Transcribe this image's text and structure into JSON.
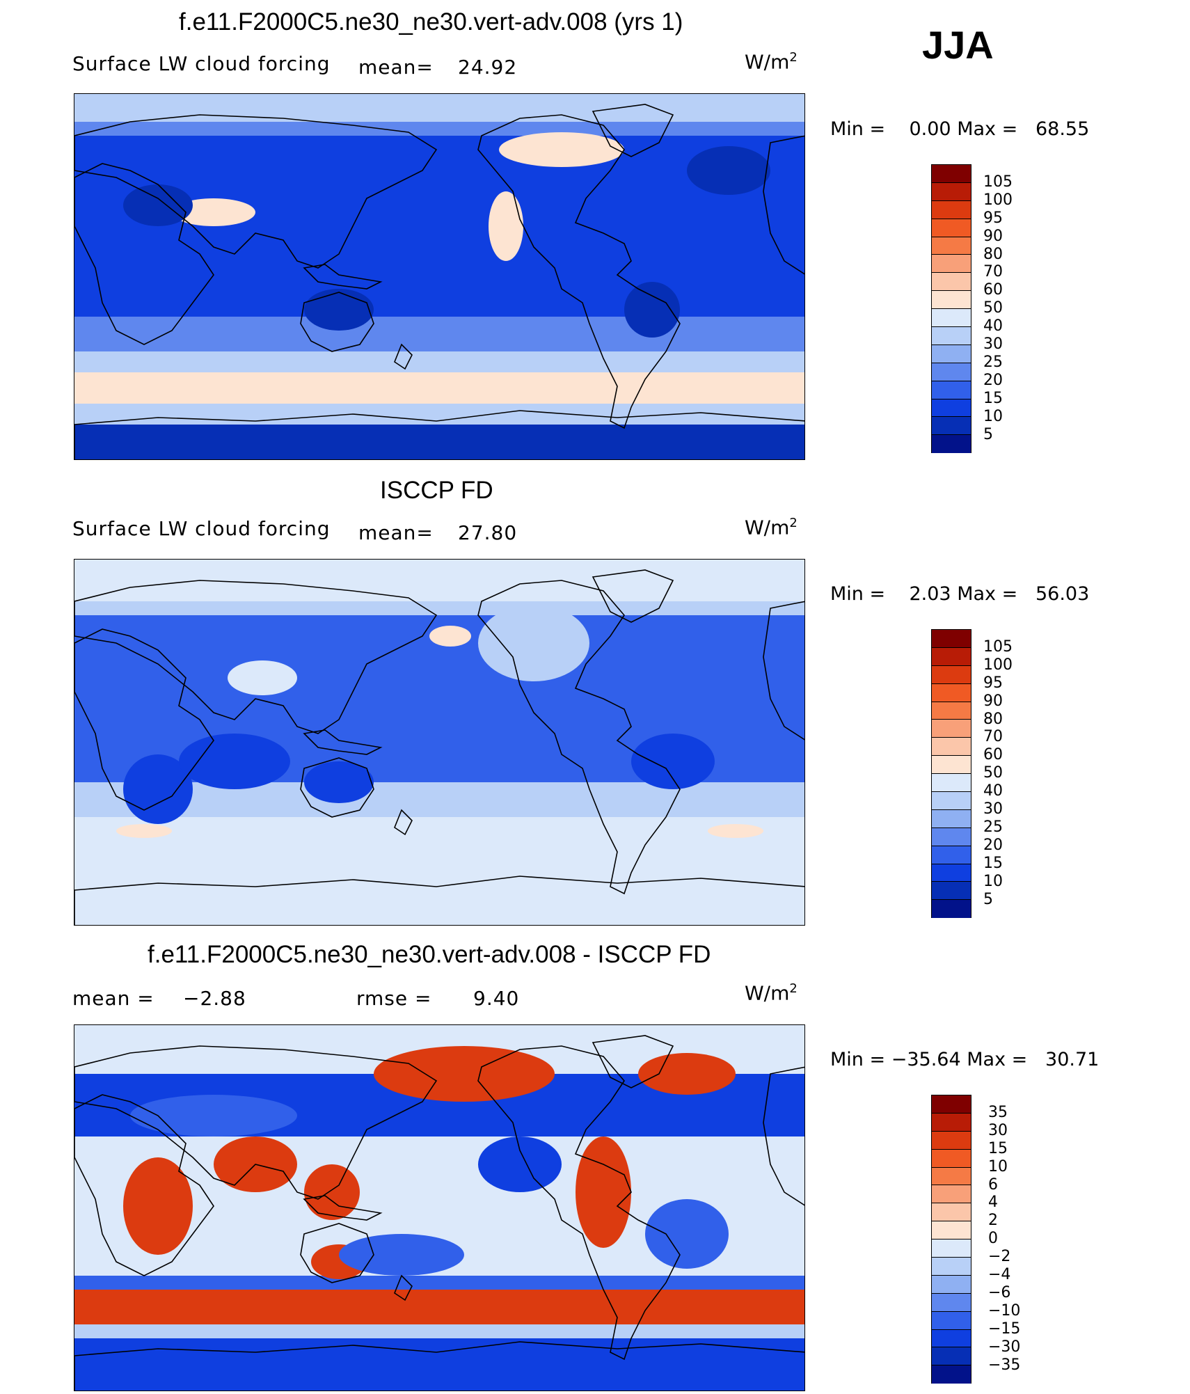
{
  "season": "JJA",
  "panels": [
    {
      "id": "model",
      "title": "f.e11.F2000C5.ne30_ne30.vert-adv.008 (yrs 1)",
      "variable": "Surface LW cloud forcing",
      "mean_label": "mean=",
      "mean_value": "24.92",
      "units": "W/m",
      "units_exp": "2",
      "min_text": "Min =",
      "min_value": "0.00",
      "max_text": "Max =",
      "max_value": "68.55",
      "colorbar_labels": [
        "105",
        "100",
        "95",
        "90",
        "80",
        "70",
        "60",
        "50",
        "40",
        "30",
        "25",
        "20",
        "15",
        "10",
        "5"
      ],
      "colorbar_colors": [
        "#7f0000",
        "#b81c06",
        "#dc3b10",
        "#f05a24",
        "#f57a45",
        "#f8a079",
        "#fbc6aa",
        "#fde4d2",
        "#dce9fa",
        "#b8d0f7",
        "#8fb0f2",
        "#5f87ee",
        "#3160ea",
        "#0f3fe0",
        "#062fb5",
        "#02128a"
      ],
      "field_colors": {
        "base": "#0f3fe0",
        "ocean": "#5f87ee",
        "light": "#b8d0f7",
        "warm": "#fde4d2",
        "dark": "#062fb5"
      }
    },
    {
      "id": "obs",
      "title": "ISCCP FD",
      "variable": "Surface LW cloud forcing",
      "mean_label": "mean=",
      "mean_value": "27.80",
      "units": "W/m",
      "units_exp": "2",
      "min_text": "Min =",
      "min_value": "2.03",
      "max_text": "Max =",
      "max_value": "56.03",
      "colorbar_labels": [
        "105",
        "100",
        "95",
        "90",
        "80",
        "70",
        "60",
        "50",
        "40",
        "30",
        "25",
        "20",
        "15",
        "10",
        "5"
      ],
      "colorbar_colors": [
        "#7f0000",
        "#b81c06",
        "#dc3b10",
        "#f05a24",
        "#f57a45",
        "#f8a079",
        "#fbc6aa",
        "#fde4d2",
        "#dce9fa",
        "#b8d0f7",
        "#8fb0f2",
        "#5f87ee",
        "#3160ea",
        "#0f3fe0",
        "#062fb5",
        "#02128a"
      ],
      "field_colors": {
        "base": "#3160ea",
        "ocean": "#b8d0f7",
        "light": "#dce9fa",
        "warm": "#fde4d2",
        "dark": "#0f3fe0"
      }
    },
    {
      "id": "diff",
      "title": "f.e11.F2000C5.ne30_ne30.vert-adv.008 - ISCCP FD",
      "mean_label": "mean =",
      "mean_value": "−2.88",
      "rmse_label": "rmse =",
      "rmse_value": "9.40",
      "units": "W/m",
      "units_exp": "2",
      "min_text": "Min =",
      "min_value": "−35.64",
      "max_text": "Max =",
      "max_value": "30.71",
      "colorbar_labels": [
        "35",
        "30",
        "15",
        "10",
        "6",
        "4",
        "2",
        "0",
        "−2",
        "−4",
        "−6",
        "−10",
        "−15",
        "−30",
        "−35"
      ],
      "colorbar_colors": [
        "#7f0000",
        "#b81c06",
        "#dc3b10",
        "#f05a24",
        "#f57a45",
        "#f8a079",
        "#fbc6aa",
        "#fde4d2",
        "#dce9fa",
        "#b8d0f7",
        "#8fb0f2",
        "#5f87ee",
        "#3160ea",
        "#0f3fe0",
        "#062fb5",
        "#02128a"
      ],
      "field_colors": {
        "base": "#3160ea",
        "ocean": "#dce9fa",
        "light": "#b8d0f7",
        "warm": "#dc3b10",
        "dark": "#0f3fe0"
      }
    }
  ]
}
